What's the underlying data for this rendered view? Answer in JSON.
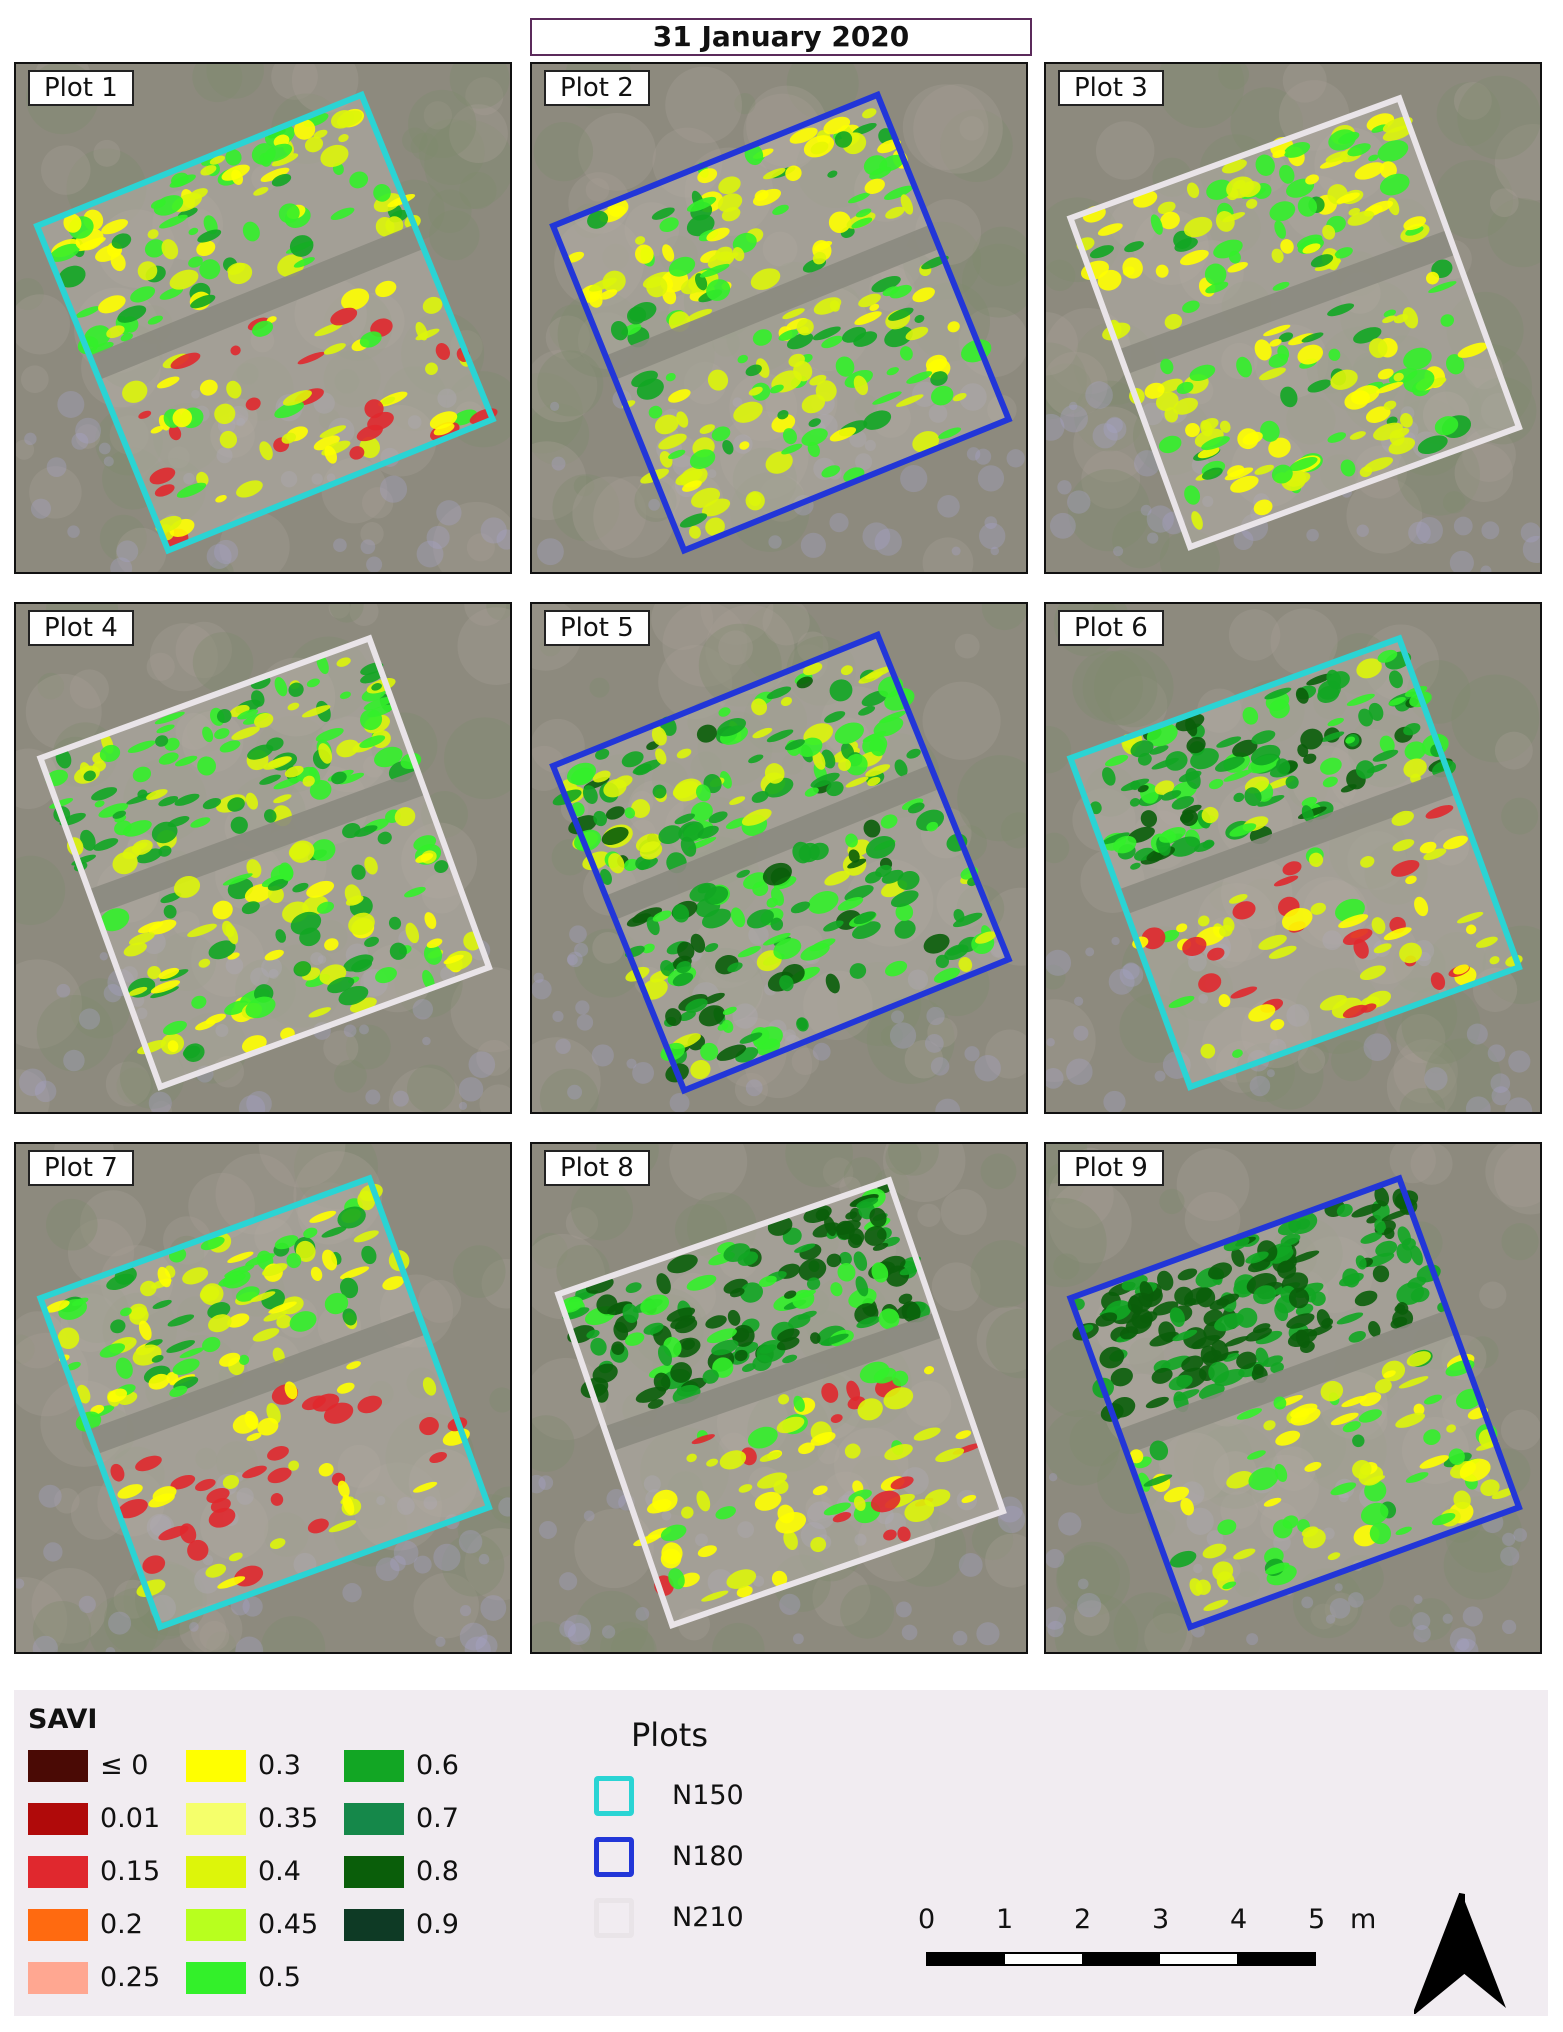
{
  "title": "31 January 2020",
  "plots": [
    {
      "label": "Plot 1",
      "treatment": "N150",
      "veg_top": 0.45,
      "veg_bottom": 0.25
    },
    {
      "label": "Plot 2",
      "treatment": "N180",
      "veg_top": 0.45,
      "veg_bottom": 0.45
    },
    {
      "label": "Plot 3",
      "treatment": "N210",
      "veg_top": 0.4,
      "veg_bottom": 0.45
    },
    {
      "label": "Plot 4",
      "treatment": "N210",
      "veg_top": 0.55,
      "veg_bottom": 0.5
    },
    {
      "label": "Plot 5",
      "treatment": "N180",
      "veg_top": 0.6,
      "veg_bottom": 0.65
    },
    {
      "label": "Plot 6",
      "treatment": "N150",
      "veg_top": 0.65,
      "veg_bottom": 0.25
    },
    {
      "label": "Plot 7",
      "treatment": "N150",
      "veg_top": 0.45,
      "veg_bottom": 0.15
    },
    {
      "label": "Plot 8",
      "treatment": "N210",
      "veg_top": 0.75,
      "veg_bottom": 0.3
    },
    {
      "label": "Plot 9",
      "treatment": "N180",
      "veg_top": 0.85,
      "veg_bottom": 0.4
    }
  ],
  "legend": {
    "savi_title": "SAVI",
    "classes": [
      {
        "label": "≤ 0",
        "color": "#4a0a05"
      },
      {
        "label": "0.01",
        "color": "#b00a0a"
      },
      {
        "label": "0.15",
        "color": "#e0282e"
      },
      {
        "label": "0.2",
        "color": "#ff6a10"
      },
      {
        "label": "0.25",
        "color": "#ffa791"
      },
      {
        "label": "0.3",
        "color": "#ffff00"
      },
      {
        "label": "0.35",
        "color": "#f5ff6b"
      },
      {
        "label": "0.4",
        "color": "#ddf50a"
      },
      {
        "label": "0.45",
        "color": "#b8ff1e"
      },
      {
        "label": "0.5",
        "color": "#33f02a"
      },
      {
        "label": "0.6",
        "color": "#12a624"
      },
      {
        "label": "0.7",
        "color": "#15884a"
      },
      {
        "label": "0.8",
        "color": "#0a5e0a"
      },
      {
        "label": "0.9",
        "color": "#0e3a25"
      }
    ],
    "plots_title": "Plots",
    "plot_classes": [
      {
        "label": "N150",
        "color": "#2ad4d4"
      },
      {
        "label": "N180",
        "color": "#2236d8"
      },
      {
        "label": "N210",
        "color": "#e9e4e8"
      }
    ]
  },
  "scale": {
    "ticks": [
      "0",
      "1",
      "2",
      "3",
      "4",
      "5"
    ],
    "unit": "m"
  },
  "north_arrow": "north-arrow-icon"
}
